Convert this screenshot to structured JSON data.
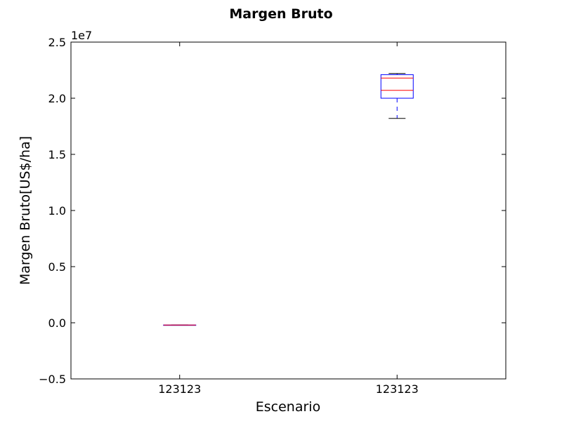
{
  "chart_data": {
    "type": "box",
    "title": "Margen Bruto",
    "xlabel": "Escenario",
    "ylabel": "Margen Bruto[US$/ha]",
    "y_multiplier_label": "1e7",
    "ylim": [
      -0.5,
      2.5
    ],
    "y_ticks": [
      -0.5,
      0.0,
      0.5,
      1.0,
      1.5,
      2.0,
      2.5
    ],
    "y_tick_labels": [
      "−0.5",
      "0.0",
      "0.5",
      "1.0",
      "1.5",
      "2.0",
      "2.5"
    ],
    "categories": [
      "123123",
      "123123"
    ],
    "boxes": [
      {
        "category": "123123",
        "whisker_low": -0.02,
        "q1": -0.02,
        "median": -0.02,
        "q3": -0.02,
        "whisker_high": -0.02,
        "extra_line": null
      },
      {
        "category": "123123",
        "whisker_low": 1.82,
        "q1": 2.0,
        "median": 2.07,
        "q3": 2.21,
        "whisker_high": 2.22,
        "extra_line": 2.18
      }
    ],
    "colors": {
      "box": "#0000ff",
      "median": "#ff0000",
      "whisker": "#0000ff",
      "cap": "#000000"
    },
    "grid": false
  }
}
